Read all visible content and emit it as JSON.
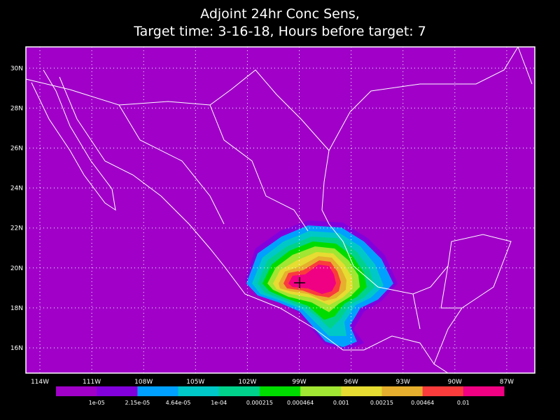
{
  "title": [
    "Adjoint 24hr Conc Sens,",
    "Target time: 3-16-18, Hours before target: 7"
  ],
  "map": {
    "lon_labels": [
      "114W",
      "111W",
      "108W",
      "105W",
      "102W",
      "99W",
      "96W",
      "93W",
      "90W",
      "87W"
    ],
    "lat_labels": [
      "16N",
      "18N",
      "20N",
      "22N",
      "24N",
      "26N",
      "28N",
      "30N"
    ],
    "background": "#a000c8"
  },
  "colorbar": {
    "labels": [
      "1e-05",
      "2.15e-05",
      "4.64e-05",
      "1e-04",
      "0.000215",
      "0.000464",
      "0.001",
      "0.00215",
      "0.00464",
      "0.01"
    ],
    "colors": [
      "#a000c8",
      "#8200dc",
      "#00a0ff",
      "#00c8c8",
      "#00d28c",
      "#00dc00",
      "#a0e632",
      "#e6dc32",
      "#e6af2d",
      "#fa3c3c",
      "#f00082"
    ]
  }
}
